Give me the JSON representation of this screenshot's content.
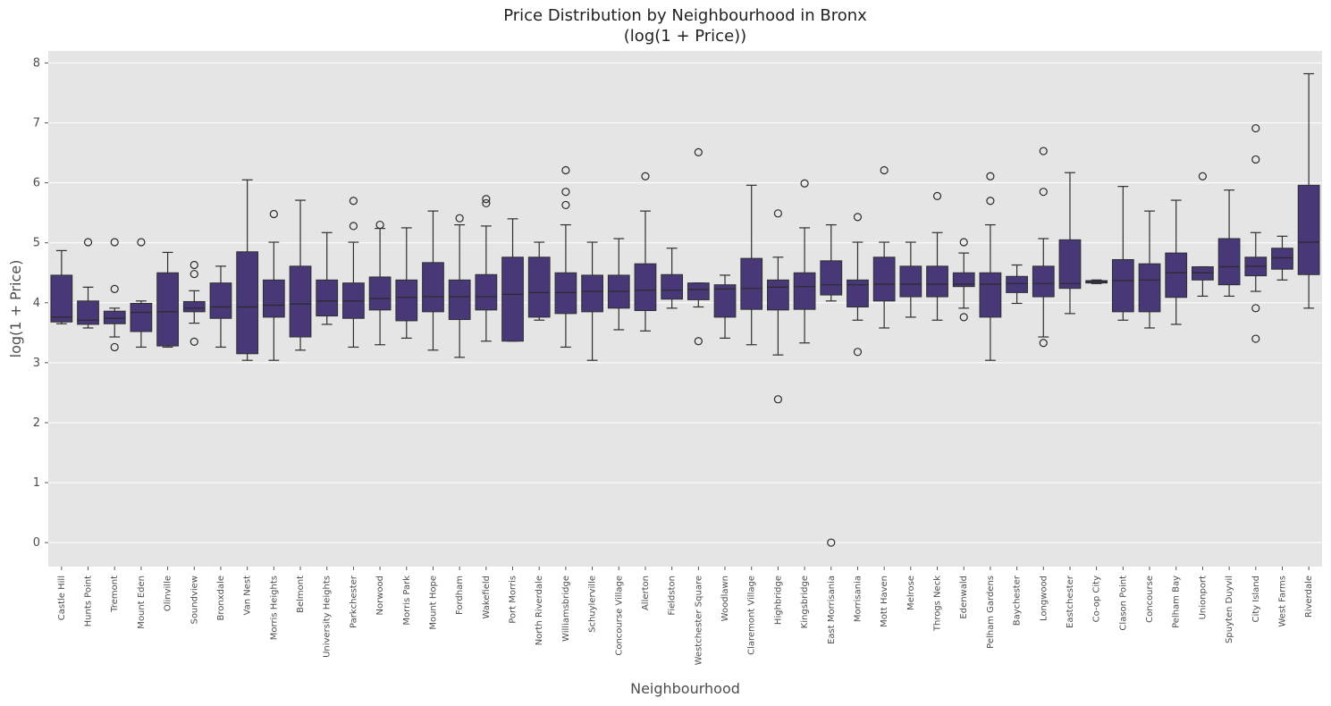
{
  "chart_data": {
    "type": "box",
    "title": "Price Distribution by Neighbourhood in Bronx",
    "subtitle": "(log(1 + Price))",
    "xlabel": "Neighbourhood",
    "ylabel": "log(1 + Price)",
    "ylim": [
      -0.4,
      8.2
    ],
    "yticks": [
      0,
      1,
      2,
      3,
      4,
      5,
      6,
      7,
      8
    ],
    "grid": true,
    "legend": "none",
    "colors": {
      "box_fill": "#483877",
      "plot_bg": "#e5e5e5",
      "grid": "#ffffff",
      "line": "#2f2f2f"
    },
    "series": [
      {
        "category": "Castle Hill",
        "whisker_low": 3.65,
        "q1": 3.68,
        "median": 3.76,
        "q3": 4.46,
        "whisker_high": 4.87,
        "outliers": []
      },
      {
        "category": "Hunts Point",
        "whisker_low": 3.58,
        "q1": 3.64,
        "median": 3.71,
        "q3": 4.03,
        "whisker_high": 4.26,
        "outliers": [
          5.01
        ]
      },
      {
        "category": "Tremont",
        "whisker_low": 3.43,
        "q1": 3.65,
        "median": 3.74,
        "q3": 3.86,
        "whisker_high": 3.91,
        "outliers": [
          3.26,
          4.23,
          5.01
        ]
      },
      {
        "category": "Mount Eden",
        "whisker_low": 3.26,
        "q1": 3.52,
        "median": 3.84,
        "q3": 3.99,
        "whisker_high": 4.03,
        "outliers": [
          5.01
        ]
      },
      {
        "category": "Olinville",
        "whisker_low": 3.26,
        "q1": 3.28,
        "median": 3.85,
        "q3": 4.5,
        "whisker_high": 4.84,
        "outliers": []
      },
      {
        "category": "Soundview",
        "whisker_low": 3.66,
        "q1": 3.85,
        "median": 3.91,
        "q3": 4.02,
        "whisker_high": 4.2,
        "outliers": [
          3.35,
          4.48,
          4.63
        ]
      },
      {
        "category": "Bronxdale",
        "whisker_low": 3.26,
        "q1": 3.74,
        "median": 3.93,
        "q3": 4.33,
        "whisker_high": 4.61,
        "outliers": []
      },
      {
        "category": "Van Nest",
        "whisker_low": 3.04,
        "q1": 3.15,
        "median": 3.93,
        "q3": 4.85,
        "whisker_high": 6.05,
        "outliers": []
      },
      {
        "category": "Morris Heights",
        "whisker_low": 3.04,
        "q1": 3.76,
        "median": 3.96,
        "q3": 4.38,
        "whisker_high": 5.01,
        "outliers": [
          5.48
        ]
      },
      {
        "category": "Belmont",
        "whisker_low": 3.21,
        "q1": 3.43,
        "median": 3.98,
        "q3": 4.61,
        "whisker_high": 5.71,
        "outliers": []
      },
      {
        "category": "University Heights",
        "whisker_low": 3.64,
        "q1": 3.78,
        "median": 4.03,
        "q3": 4.38,
        "whisker_high": 5.17,
        "outliers": []
      },
      {
        "category": "Parkchester",
        "whisker_low": 3.26,
        "q1": 3.74,
        "median": 4.03,
        "q3": 4.33,
        "whisker_high": 5.01,
        "outliers": [
          5.28,
          5.7
        ]
      },
      {
        "category": "Norwood",
        "whisker_low": 3.3,
        "q1": 3.88,
        "median": 4.07,
        "q3": 4.43,
        "whisker_high": 5.24,
        "outliers": [
          5.3
        ]
      },
      {
        "category": "Morris Park",
        "whisker_low": 3.41,
        "q1": 3.7,
        "median": 4.09,
        "q3": 4.38,
        "whisker_high": 5.25,
        "outliers": []
      },
      {
        "category": "Mount Hope",
        "whisker_low": 3.21,
        "q1": 3.85,
        "median": 4.1,
        "q3": 4.67,
        "whisker_high": 5.53,
        "outliers": []
      },
      {
        "category": "Fordham",
        "whisker_low": 3.09,
        "q1": 3.72,
        "median": 4.1,
        "q3": 4.38,
        "whisker_high": 5.3,
        "outliers": [
          5.41
        ]
      },
      {
        "category": "Wakefield",
        "whisker_low": 3.36,
        "q1": 3.88,
        "median": 4.1,
        "q3": 4.47,
        "whisker_high": 5.28,
        "outliers": [
          5.66,
          5.73
        ]
      },
      {
        "category": "Port Morris",
        "whisker_low": 3.36,
        "q1": 3.36,
        "median": 4.14,
        "q3": 4.76,
        "whisker_high": 5.4,
        "outliers": []
      },
      {
        "category": "North Riverdale",
        "whisker_low": 3.71,
        "q1": 3.76,
        "median": 4.17,
        "q3": 4.76,
        "whisker_high": 5.01,
        "outliers": []
      },
      {
        "category": "Williamsbridge",
        "whisker_low": 3.26,
        "q1": 3.82,
        "median": 4.17,
        "q3": 4.5,
        "whisker_high": 5.3,
        "outliers": [
          5.63,
          5.85,
          6.21
        ]
      },
      {
        "category": "Schuylerville",
        "whisker_low": 3.04,
        "q1": 3.85,
        "median": 4.19,
        "q3": 4.46,
        "whisker_high": 5.01,
        "outliers": []
      },
      {
        "category": "Concourse Village",
        "whisker_low": 3.55,
        "q1": 3.91,
        "median": 4.19,
        "q3": 4.46,
        "whisker_high": 5.07,
        "outliers": []
      },
      {
        "category": "Allerton",
        "whisker_low": 3.53,
        "q1": 3.87,
        "median": 4.21,
        "q3": 4.65,
        "whisker_high": 5.53,
        "outliers": [
          6.11
        ]
      },
      {
        "category": "Fieldston",
        "whisker_low": 3.91,
        "q1": 4.06,
        "median": 4.21,
        "q3": 4.47,
        "whisker_high": 4.91,
        "outliers": []
      },
      {
        "category": "Westchester Square",
        "whisker_low": 3.93,
        "q1": 4.05,
        "median": 4.22,
        "q3": 4.33,
        "whisker_high": 4.33,
        "outliers": [
          3.36,
          6.51
        ]
      },
      {
        "category": "Woodlawn",
        "whisker_low": 3.41,
        "q1": 3.76,
        "median": 4.23,
        "q3": 4.3,
        "whisker_high": 4.46,
        "outliers": []
      },
      {
        "category": "Claremont Village",
        "whisker_low": 3.3,
        "q1": 3.89,
        "median": 4.24,
        "q3": 4.74,
        "whisker_high": 5.96,
        "outliers": []
      },
      {
        "category": "Highbridge",
        "whisker_low": 3.13,
        "q1": 3.88,
        "median": 4.26,
        "q3": 4.38,
        "whisker_high": 4.76,
        "outliers": [
          2.39,
          5.49
        ]
      },
      {
        "category": "Kingsbridge",
        "whisker_low": 3.33,
        "q1": 3.89,
        "median": 4.27,
        "q3": 4.5,
        "whisker_high": 5.25,
        "outliers": [
          5.99
        ]
      },
      {
        "category": "East Morrisania",
        "whisker_low": 4.03,
        "q1": 4.13,
        "median": 4.3,
        "q3": 4.7,
        "whisker_high": 5.3,
        "outliers": [
          0.0
        ]
      },
      {
        "category": "Morrisania",
        "whisker_low": 3.71,
        "q1": 3.93,
        "median": 4.3,
        "q3": 4.38,
        "whisker_high": 5.01,
        "outliers": [
          3.18,
          5.43
        ]
      },
      {
        "category": "Mott Haven",
        "whisker_low": 3.58,
        "q1": 4.03,
        "median": 4.31,
        "q3": 4.76,
        "whisker_high": 5.01,
        "outliers": [
          6.21
        ]
      },
      {
        "category": "Melrose",
        "whisker_low": 3.76,
        "q1": 4.1,
        "median": 4.31,
        "q3": 4.61,
        "whisker_high": 5.01,
        "outliers": []
      },
      {
        "category": "Throgs Neck",
        "whisker_low": 3.71,
        "q1": 4.1,
        "median": 4.31,
        "q3": 4.61,
        "whisker_high": 5.17,
        "outliers": [
          5.78
        ]
      },
      {
        "category": "Edenwald",
        "whisker_low": 3.91,
        "q1": 4.27,
        "median": 4.31,
        "q3": 4.5,
        "whisker_high": 4.83,
        "outliers": [
          3.76,
          5.01
        ]
      },
      {
        "category": "Pelham Gardens",
        "whisker_low": 3.04,
        "q1": 3.76,
        "median": 4.31,
        "q3": 4.5,
        "whisker_high": 5.3,
        "outliers": [
          5.7,
          6.11
        ]
      },
      {
        "category": "Baychester",
        "whisker_low": 3.99,
        "q1": 4.17,
        "median": 4.32,
        "q3": 4.44,
        "whisker_high": 4.63,
        "outliers": []
      },
      {
        "category": "Longwood",
        "whisker_low": 3.43,
        "q1": 4.1,
        "median": 4.32,
        "q3": 4.61,
        "whisker_high": 5.07,
        "outliers": [
          3.33,
          5.85,
          6.53
        ]
      },
      {
        "category": "Eastchester",
        "whisker_low": 3.82,
        "q1": 4.24,
        "median": 4.32,
        "q3": 5.05,
        "whisker_high": 6.17,
        "outliers": []
      },
      {
        "category": "Co-op City",
        "whisker_low": 4.32,
        "q1": 4.33,
        "median": 4.35,
        "q3": 4.37,
        "whisker_high": 4.38,
        "outliers": []
      },
      {
        "category": "Clason Point",
        "whisker_low": 3.71,
        "q1": 3.85,
        "median": 4.37,
        "q3": 4.72,
        "whisker_high": 5.94,
        "outliers": []
      },
      {
        "category": "Concourse",
        "whisker_low": 3.58,
        "q1": 3.85,
        "median": 4.38,
        "q3": 4.65,
        "whisker_high": 5.53,
        "outliers": []
      },
      {
        "category": "Pelham Bay",
        "whisker_low": 3.64,
        "q1": 4.09,
        "median": 4.5,
        "q3": 4.83,
        "whisker_high": 5.71,
        "outliers": []
      },
      {
        "category": "Unionport",
        "whisker_low": 4.11,
        "q1": 4.38,
        "median": 4.5,
        "q3": 4.6,
        "whisker_high": 4.6,
        "outliers": [
          6.11
        ]
      },
      {
        "category": "Spuyten Duyvil",
        "whisker_low": 4.11,
        "q1": 4.3,
        "median": 4.6,
        "q3": 5.07,
        "whisker_high": 5.88,
        "outliers": []
      },
      {
        "category": "City Island",
        "whisker_low": 4.19,
        "q1": 4.45,
        "median": 4.61,
        "q3": 4.76,
        "whisker_high": 5.17,
        "outliers": [
          3.4,
          3.91,
          6.39,
          6.91
        ]
      },
      {
        "category": "West Farms",
        "whisker_low": 4.38,
        "q1": 4.56,
        "median": 4.75,
        "q3": 4.91,
        "whisker_high": 5.11,
        "outliers": []
      },
      {
        "category": "Riverdale",
        "whisker_low": 3.91,
        "q1": 4.47,
        "median": 5.01,
        "q3": 5.96,
        "whisker_high": 7.82,
        "outliers": []
      }
    ]
  }
}
